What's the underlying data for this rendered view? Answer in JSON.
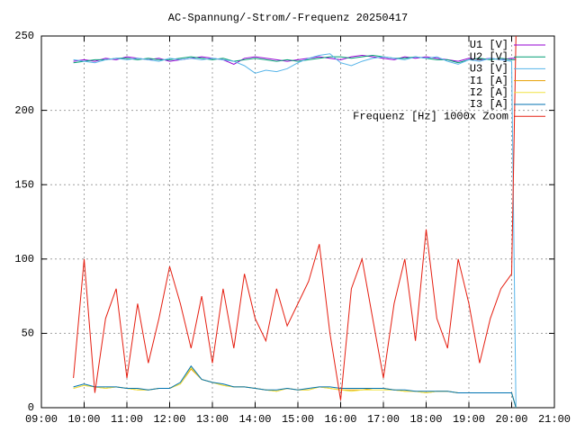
{
  "chart_data": {
    "type": "line",
    "title": "AC-Spannung/-Strom/-Frequenz 20250417",
    "x": [
      9.75,
      10,
      10.25,
      10.5,
      10.75,
      11,
      11.25,
      11.5,
      11.75,
      12,
      12.25,
      12.5,
      12.75,
      13,
      13.25,
      13.5,
      13.75,
      14,
      14.25,
      14.5,
      14.75,
      15,
      15.25,
      15.5,
      15.75,
      16,
      16.25,
      16.5,
      16.75,
      17,
      17.25,
      17.5,
      17.75,
      18,
      18.25,
      18.5,
      18.75,
      19,
      19.25,
      19.5,
      19.75,
      20,
      20.1
    ],
    "series": [
      {
        "name": "U1 [V]",
        "color": "#9400d3",
        "values": [
          233,
          234,
          233,
          235,
          234,
          236,
          235,
          234,
          235,
          233,
          234,
          235,
          236,
          235,
          234,
          231,
          235,
          236,
          235,
          234,
          233,
          234,
          235,
          236,
          235,
          234,
          236,
          237,
          236,
          235,
          234,
          236,
          235,
          236,
          235,
          234,
          233,
          235,
          234,
          235,
          234,
          235,
          235
        ]
      },
      {
        "name": "U2 [V]",
        "color": "#009e73",
        "values": [
          232,
          233,
          234,
          234,
          235,
          235,
          234,
          235,
          234,
          234,
          235,
          236,
          235,
          234,
          235,
          233,
          234,
          235,
          234,
          233,
          234,
          233,
          234,
          235,
          236,
          236,
          235,
          236,
          237,
          236,
          235,
          235,
          236,
          235,
          234,
          234,
          232,
          234,
          235,
          234,
          235,
          234,
          234
        ]
      },
      {
        "name": "U3 [V]",
        "color": "#56b4e9",
        "values": [
          234,
          233,
          232,
          234,
          235,
          234,
          235,
          234,
          233,
          235,
          234,
          235,
          234,
          235,
          234,
          233,
          230,
          225,
          227,
          226,
          228,
          232,
          235,
          237,
          238,
          232,
          230,
          233,
          235,
          236,
          235,
          234,
          236,
          235,
          236,
          233,
          231,
          234,
          233,
          235,
          234,
          233,
          0
        ]
      },
      {
        "name": "I1 [A]",
        "color": "#e69f00",
        "values": [
          13,
          15,
          14,
          13,
          14,
          13,
          12,
          12,
          13,
          13,
          16,
          26,
          19,
          17,
          15,
          14,
          14,
          13,
          12,
          11,
          13,
          12,
          12,
          14,
          13,
          12,
          12,
          12,
          13,
          13,
          12,
          11,
          11,
          10,
          11,
          11,
          10,
          10,
          10,
          10,
          10,
          10,
          0
        ]
      },
      {
        "name": "I2 [A]",
        "color": "#f0e442",
        "values": [
          13,
          15,
          14,
          13,
          14,
          13,
          12,
          12,
          13,
          13,
          16,
          27,
          19,
          17,
          15,
          14,
          14,
          13,
          12,
          11,
          13,
          12,
          12,
          14,
          13,
          12,
          11,
          12,
          12,
          12,
          12,
          11,
          11,
          10,
          11,
          11,
          10,
          10,
          10,
          10,
          10,
          10,
          0
        ]
      },
      {
        "name": "I3 [A]",
        "color": "#0072b2",
        "values": [
          14,
          16,
          14,
          14,
          14,
          13,
          13,
          12,
          13,
          13,
          17,
          28,
          19,
          17,
          16,
          14,
          14,
          13,
          12,
          12,
          13,
          12,
          13,
          14,
          14,
          13,
          13,
          13,
          13,
          13,
          12,
          12,
          11,
          11,
          11,
          11,
          10,
          10,
          10,
          10,
          10,
          10,
          0
        ]
      },
      {
        "name": "Frequenz [Hz] 1000x Zoom",
        "color": "#e51e10",
        "values": [
          20,
          100,
          10,
          60,
          80,
          20,
          70,
          30,
          60,
          95,
          70,
          40,
          75,
          30,
          80,
          40,
          90,
          60,
          45,
          80,
          55,
          70,
          85,
          110,
          50,
          5,
          80,
          100,
          60,
          20,
          70,
          100,
          45,
          120,
          60,
          40,
          100,
          70,
          30,
          60,
          80,
          90,
          250
        ]
      }
    ],
    "xlim": [
      9,
      21
    ],
    "xticks": [
      {
        "value": 9,
        "label": "09:00"
      },
      {
        "value": 10,
        "label": "10:00"
      },
      {
        "value": 11,
        "label": "11:00"
      },
      {
        "value": 12,
        "label": "12:00"
      },
      {
        "value": 13,
        "label": "13:00"
      },
      {
        "value": 14,
        "label": "14:00"
      },
      {
        "value": 15,
        "label": "15:00"
      },
      {
        "value": 16,
        "label": "16:00"
      },
      {
        "value": 17,
        "label": "17:00"
      },
      {
        "value": 18,
        "label": "18:00"
      },
      {
        "value": 19,
        "label": "19:00"
      },
      {
        "value": 20,
        "label": "20:00"
      },
      {
        "value": 21,
        "label": "21:00"
      }
    ],
    "ylim": [
      0,
      250
    ],
    "yticks": [
      0,
      50,
      100,
      150,
      200,
      250
    ],
    "grid": true,
    "legend": "top-right"
  }
}
